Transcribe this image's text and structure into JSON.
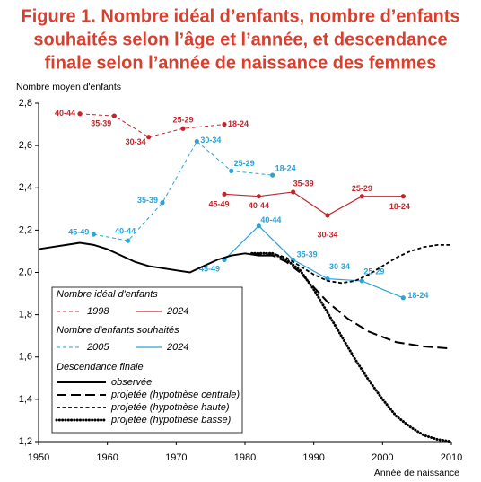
{
  "chart_data": {
    "type": "line",
    "title": [
      "Figure 1. Nombre idéal d’enfants, nombre d’enfants",
      "souhaités selon l’âge et l’année, et descendance",
      "finale selon l’année de naissance des femmes"
    ],
    "title_color": "#d7402f",
    "y_label": "Nombre moyen d'enfants",
    "x_label": "Année de naissance",
    "xlim": [
      1950,
      2010
    ],
    "xticks": [
      1950,
      1960,
      1970,
      1980,
      1990,
      2000,
      2010
    ],
    "ylim": [
      1.2,
      2.8
    ],
    "yticks": [
      {
        "value": 1.2,
        "label": "1,2"
      },
      {
        "value": 1.4,
        "label": "1,4"
      },
      {
        "value": 1.6,
        "label": "1,6"
      },
      {
        "value": 1.8,
        "label": "1,8"
      },
      {
        "value": 2.0,
        "label": "2,0"
      },
      {
        "value": 2.2,
        "label": "2,2"
      },
      {
        "value": 2.4,
        "label": "2,4"
      },
      {
        "value": 2.6,
        "label": "2,6"
      },
      {
        "value": 2.8,
        "label": "2,8"
      }
    ],
    "grid": false,
    "groups": [
      {
        "title": "Nombre idéal d'enfants",
        "series": [
          {
            "name": "1998",
            "color": "#c0272d",
            "dash": "dashed",
            "markers": true,
            "x": [
              1956,
              1961,
              1966,
              1971,
              1977
            ],
            "values": [
              2.75,
              2.74,
              2.64,
              2.68,
              2.7
            ],
            "labels": [
              "40-44",
              "35-39",
              "30-34",
              "25-29",
              "18-24"
            ]
          },
          {
            "name": "2024",
            "color": "#c0272d",
            "dash": "solid",
            "markers": true,
            "x": [
              1977,
              1982,
              1987,
              1992,
              1997,
              2003
            ],
            "values": [
              2.37,
              2.36,
              2.38,
              2.27,
              2.36,
              2.36
            ],
            "labels": [
              "45-49",
              "40-44",
              "35-39",
              "30-34",
              "25-29",
              "18-24"
            ]
          }
        ]
      },
      {
        "title": "Nombre d'enfants souhaités",
        "series": [
          {
            "name": "2005",
            "color": "#2aa3d8",
            "dash": "dashed",
            "markers": true,
            "x": [
              1958,
              1963,
              1968,
              1973,
              1978,
              1984
            ],
            "values": [
              2.18,
              2.15,
              2.33,
              2.62,
              2.48,
              2.46
            ],
            "labels": [
              "45-49",
              "40-44",
              "35-39",
              "30-34",
              "25-29",
              "18-24"
            ]
          },
          {
            "name": "2024",
            "color": "#2aa3d8",
            "dash": "solid",
            "markers": true,
            "x": [
              1977,
              1982,
              1987,
              1992,
              1997,
              2003
            ],
            "values": [
              2.06,
              2.22,
              2.06,
              1.97,
              1.96,
              1.88
            ],
            "labels": [
              "45-49",
              "40-44",
              "35-39",
              "30-34",
              "25-29",
              "18-24"
            ]
          }
        ]
      },
      {
        "title": "Descendance finale",
        "series": [
          {
            "name": "observée",
            "color": "#000000",
            "dash": "solid",
            "markers": false,
            "x": [
              1950,
              1952,
              1954,
              1956,
              1958,
              1960,
              1962,
              1964,
              1966,
              1968,
              1970,
              1972,
              1974,
              1976,
              1978,
              1980,
              1982,
              1984
            ],
            "values": [
              2.11,
              2.12,
              2.13,
              2.14,
              2.13,
              2.11,
              2.08,
              2.05,
              2.03,
              2.02,
              2.01,
              2.0,
              2.03,
              2.06,
              2.08,
              2.09,
              2.08,
              2.08
            ]
          },
          {
            "name": "projetée (hypothèse centrale)",
            "color": "#000000",
            "dash": "longdash",
            "markers": false,
            "x": [
              1981,
              1984,
              1986,
              1988,
              1990,
              1992,
              1995,
              1998,
              2002,
              2006,
              2010
            ],
            "values": [
              2.09,
              2.08,
              2.05,
              2.0,
              1.93,
              1.86,
              1.78,
              1.72,
              1.67,
              1.65,
              1.64
            ]
          },
          {
            "name": "projetée (hypothèse haute)",
            "color": "#000000",
            "dash": "shortdash",
            "markers": false,
            "x": [
              1981,
              1984,
              1986,
              1988,
              1990,
              1992,
              1994,
              1996,
              1998,
              2000,
              2002,
              2004,
              2006,
              2008,
              2010
            ],
            "values": [
              2.09,
              2.09,
              2.07,
              2.03,
              1.99,
              1.96,
              1.95,
              1.96,
              1.99,
              2.03,
              2.07,
              2.1,
              2.12,
              2.13,
              2.13
            ]
          },
          {
            "name": "projetée (hypothèse basse)",
            "color": "#000000",
            "dash": "dotted",
            "markers": false,
            "x": [
              1981,
              1984,
              1986,
              1988,
              1990,
              1992,
              1994,
              1996,
              1998,
              2000,
              2002,
              2004,
              2006,
              2008,
              2010
            ],
            "values": [
              2.09,
              2.09,
              2.06,
              2.01,
              1.92,
              1.81,
              1.7,
              1.59,
              1.49,
              1.4,
              1.32,
              1.27,
              1.23,
              1.21,
              1.2
            ]
          }
        ]
      }
    ]
  }
}
